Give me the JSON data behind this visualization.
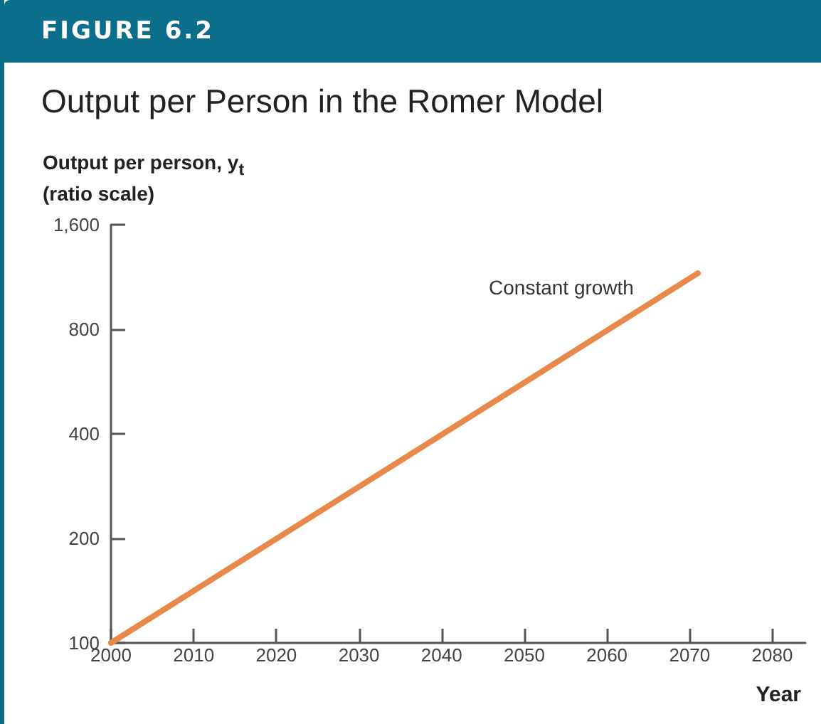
{
  "chart_data": {
    "type": "line",
    "title": "Output per Person in the Romer Model",
    "annotations": [
      "FIGURE 6.2"
    ],
    "ylabel": "Output per person, y$_{t}$\n(ratio scale)",
    "xlabel": "Year",
    "x": [
      2000,
      2071
    ],
    "series": [
      {
        "name": "Constant growth",
        "color": "#e8894a",
        "values": [
          100,
          1160
        ]
      }
    ],
    "log": "y",
    "xlim": [
      2000,
      2084
    ],
    "xticks": [
      2000,
      2010,
      2020,
      2030,
      2040,
      2050,
      2060,
      2070,
      2080
    ],
    "ylim": [
      100,
      1600
    ],
    "yticks": [
      100,
      200,
      400,
      800,
      {
        "value": 1600,
        "label": "1,600"
      }
    ],
    "marker": "none",
    "line_style": "solid"
  }
}
